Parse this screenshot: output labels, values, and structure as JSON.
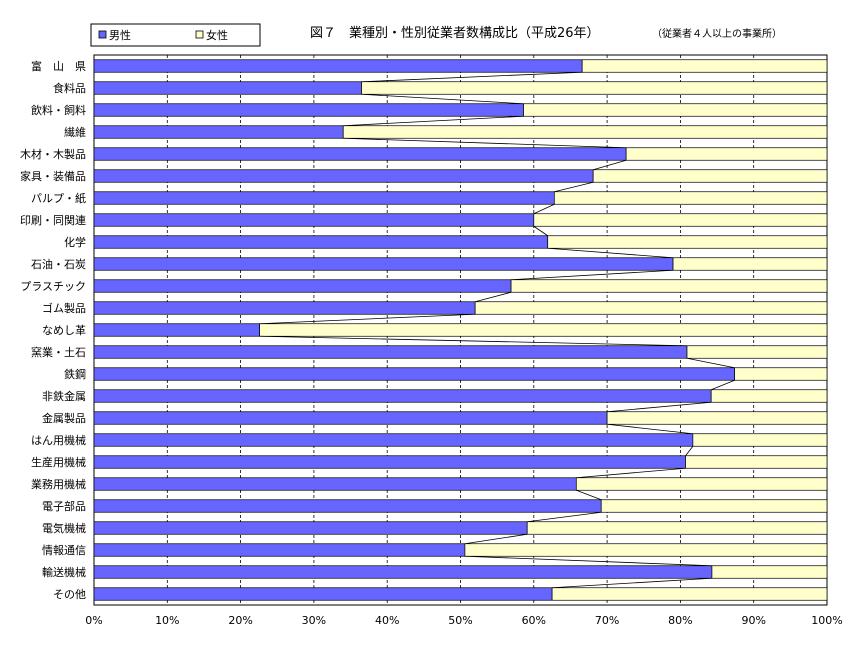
{
  "chart_data": {
    "type": "bar",
    "orientation": "horizontal",
    "stacked": true,
    "percent": true,
    "title": "図７　業種別・性別従業者数構成比（平成26年）",
    "subtitle": "（従業者４人以上の事業所）",
    "categories": [
      "富　山　県",
      "食料品",
      "飲料・飼料",
      "繊維",
      "木材・木製品",
      "家具・装備品",
      "パルプ・紙",
      "印刷・同関連",
      "化学",
      "石油・石炭",
      "プラスチック",
      "ゴム製品",
      "なめし革",
      "窯業・土石",
      "鉄鋼",
      "非鉄金属",
      "金属製品",
      "はん用機械",
      "生産用機械",
      "業務用機械",
      "電子部品",
      "電気機械",
      "情報通信",
      "輸送機械",
      "その他"
    ],
    "series": [
      {
        "name": "男性",
        "color": "#6666ff",
        "values": [
          66.6,
          36.5,
          58.6,
          34.0,
          72.6,
          68.1,
          62.8,
          60.0,
          61.9,
          79.0,
          56.9,
          52.0,
          22.6,
          80.9,
          87.4,
          84.2,
          70.0,
          81.7,
          80.7,
          65.8,
          69.2,
          59.1,
          50.6,
          84.3,
          62.5
        ]
      },
      {
        "name": "女性",
        "color": "#ffffcc",
        "values": [
          33.4,
          63.5,
          41.4,
          66.0,
          27.4,
          31.9,
          37.2,
          40.0,
          38.1,
          21.0,
          43.1,
          48.0,
          77.4,
          19.1,
          12.6,
          15.8,
          30.0,
          18.3,
          19.3,
          34.2,
          30.8,
          40.9,
          49.4,
          15.7,
          37.5
        ]
      }
    ],
    "xticks": [
      "0%",
      "10%",
      "20%",
      "30%",
      "40%",
      "50%",
      "60%",
      "70%",
      "80%",
      "90%",
      "100%"
    ],
    "xlim": [
      0,
      100
    ],
    "grid": true,
    "series_lines": true,
    "legend": {
      "placement": "top-left",
      "entries": [
        "男性",
        "女性"
      ]
    }
  }
}
